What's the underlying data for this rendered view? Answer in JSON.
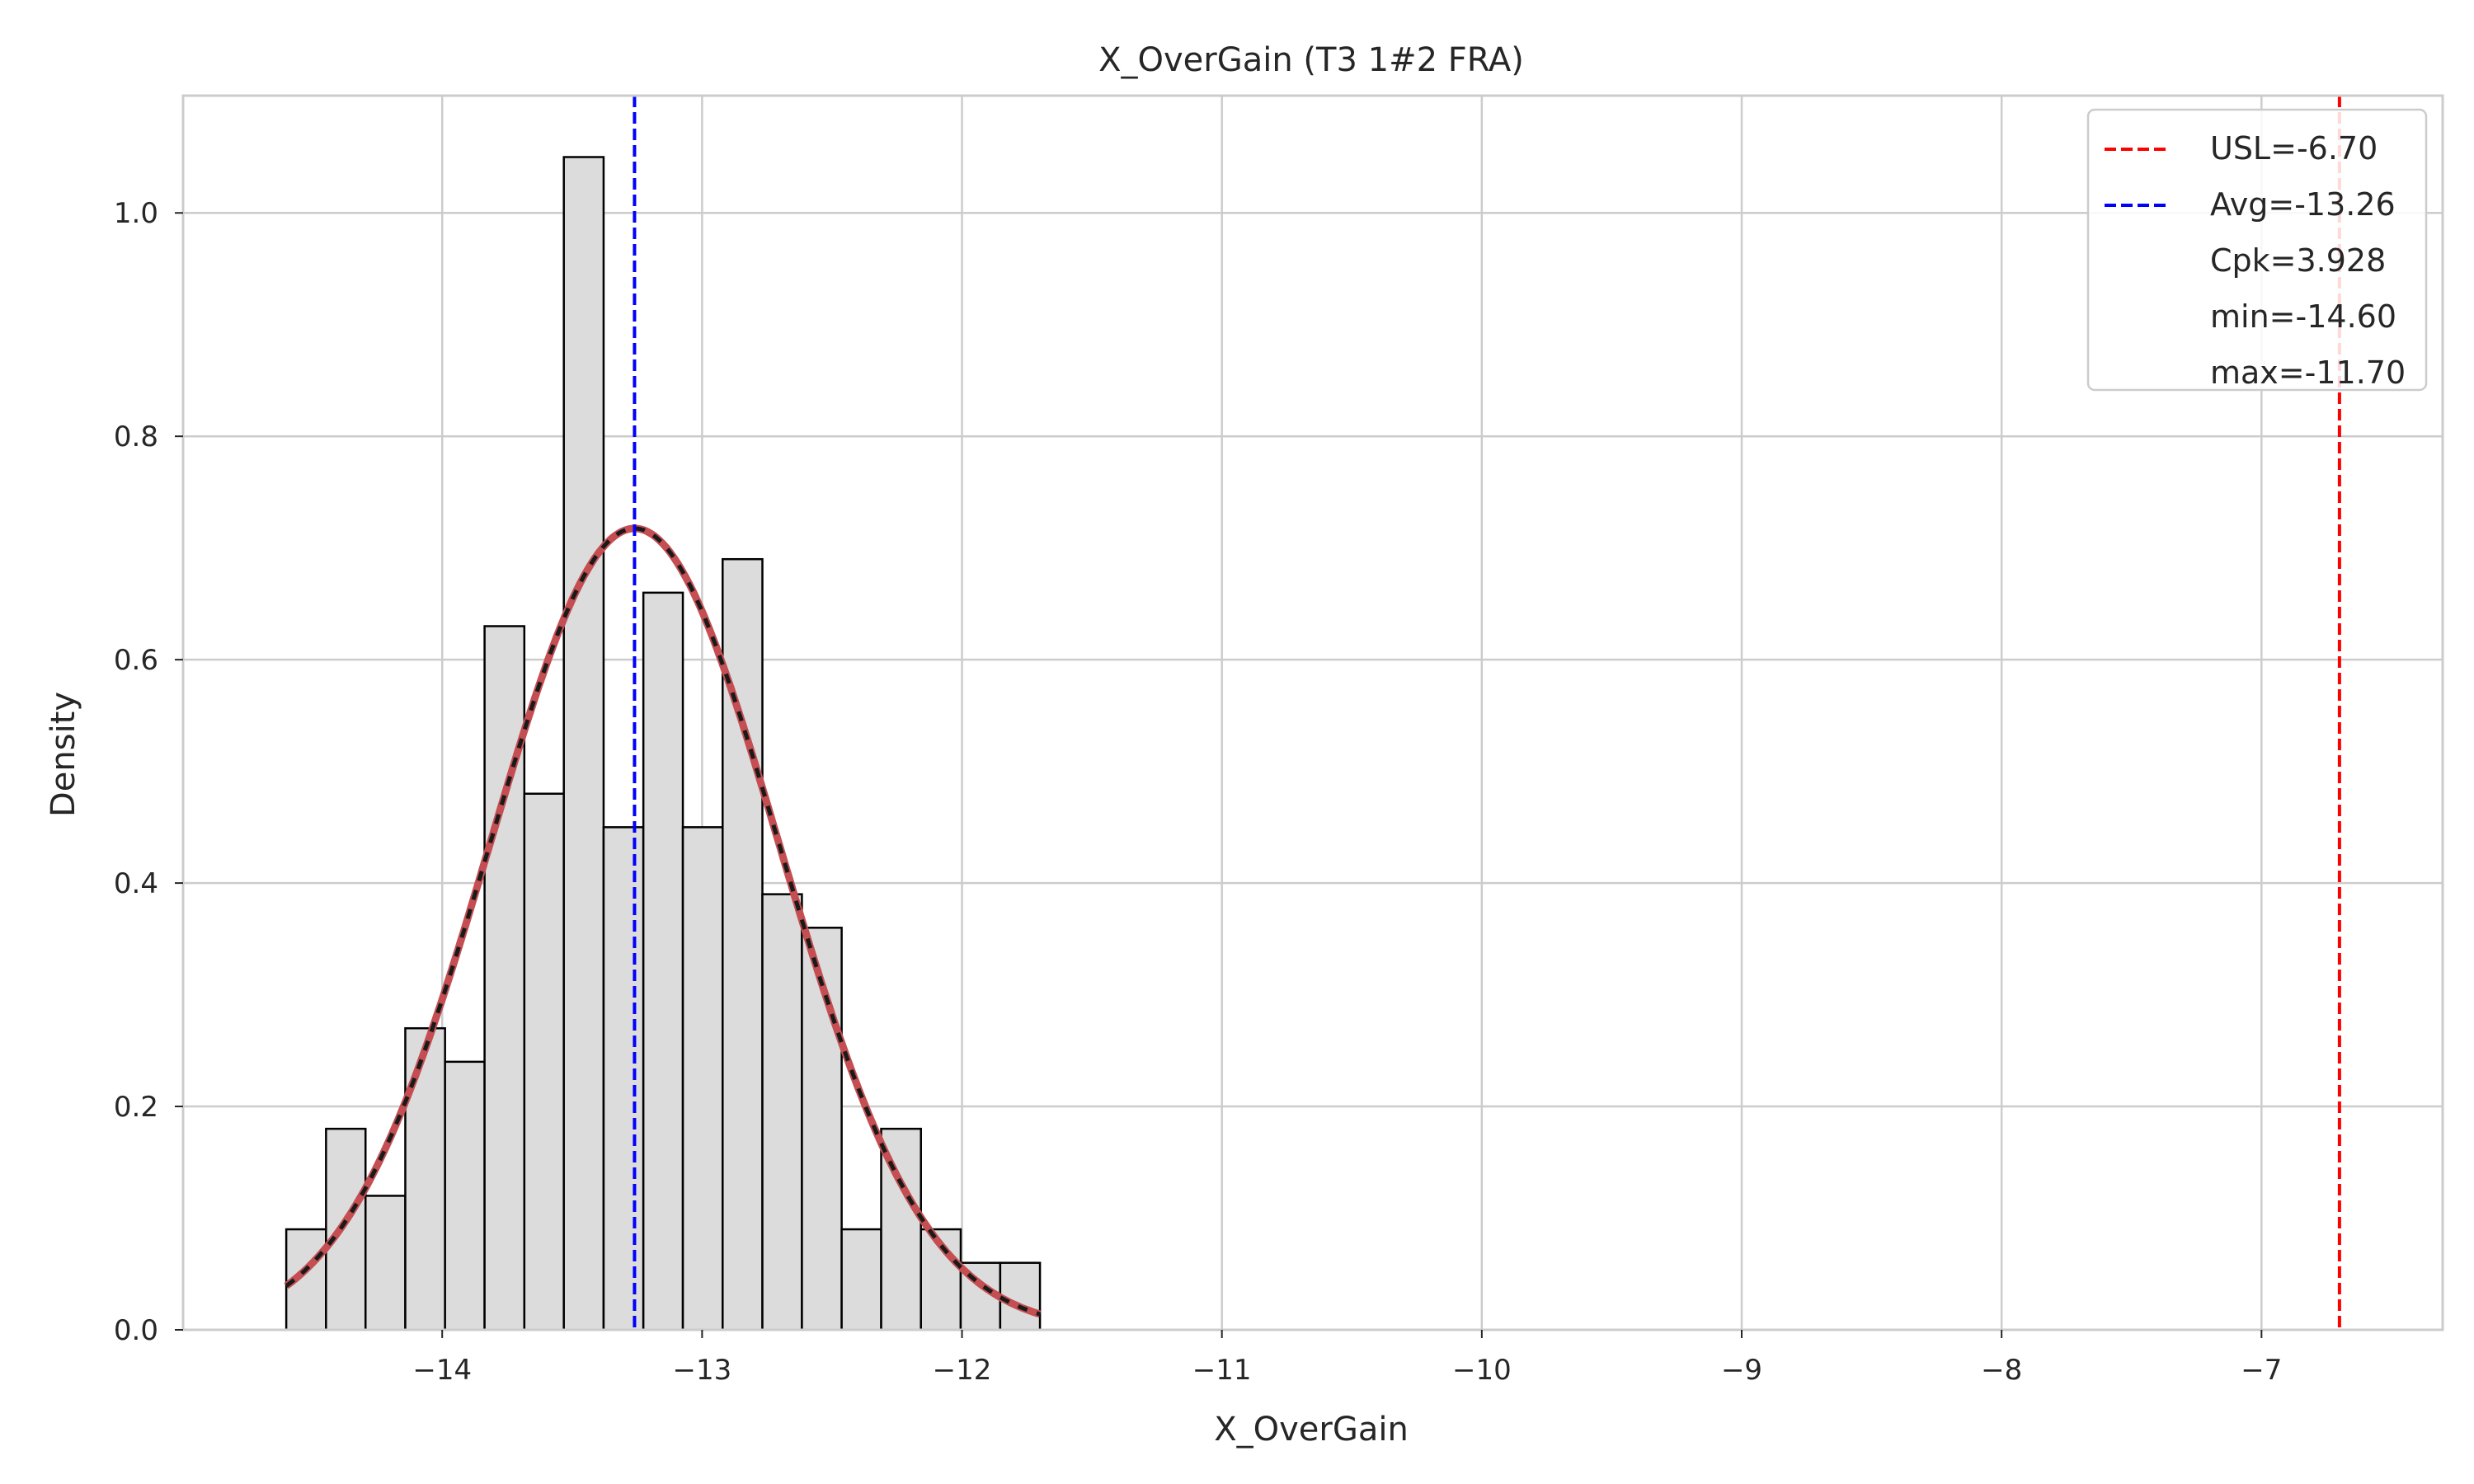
{
  "chart_data": {
    "type": "bar",
    "title": "X_OverGain (T3 1#2 FRA)",
    "xlabel": "X_OverGain",
    "ylabel": "Density",
    "xlim": [
      -14.997,
      -6.303
    ],
    "ylim": [
      0,
      1.105
    ],
    "x_ticks": [
      -14,
      -13,
      -12,
      -11,
      -10,
      -9,
      -8,
      -7
    ],
    "x_tick_labels": [
      "−14",
      "−13",
      "−12",
      "−11",
      "−10",
      "−9",
      "−8",
      "−7"
    ],
    "y_ticks": [
      0.0,
      0.2,
      0.4,
      0.6,
      0.8,
      1.0
    ],
    "y_tick_labels": [
      "0.0",
      "0.2",
      "0.4",
      "0.6",
      "0.8",
      "1.0"
    ],
    "grid": true,
    "legend_position": "top-right",
    "histogram": {
      "bin_edges": [
        -14.6,
        -14.447,
        -14.295,
        -14.142,
        -13.989,
        -13.837,
        -13.684,
        -13.532,
        -13.379,
        -13.226,
        -13.074,
        -12.921,
        -12.768,
        -12.616,
        -12.463,
        -12.311,
        -12.158,
        -12.005,
        -11.853,
        -11.7
      ],
      "values": [
        0.09,
        0.18,
        0.12,
        0.27,
        0.24,
        0.63,
        0.48,
        1.05,
        0.45,
        0.66,
        0.45,
        0.69,
        0.39,
        0.36,
        0.09,
        0.18,
        0.09,
        0.06,
        0.06
      ],
      "fill": "#dcdcdc",
      "edge": "#000000"
    },
    "fit_curve": {
      "mean": -13.26,
      "std": 0.556,
      "x_range": [
        -14.6,
        -11.7
      ],
      "colors": [
        "#c44e52",
        "#1a1a1a"
      ]
    },
    "reference_lines": [
      {
        "x": -6.7,
        "color": "#ff0000"
      },
      {
        "x": -13.26,
        "color": "#0000ff"
      }
    ],
    "legend": [
      {
        "label": "USL=-6.70",
        "color": "#ff0000",
        "style": "dashed"
      },
      {
        "label": "Avg=-13.26",
        "color": "#0000ff",
        "style": "dashed"
      },
      {
        "label": "Cpk=3.928",
        "color": null,
        "style": "none"
      },
      {
        "label": "min=-14.60",
        "color": null,
        "style": "none"
      },
      {
        "label": "max=-11.70",
        "color": null,
        "style": "none"
      }
    ]
  }
}
